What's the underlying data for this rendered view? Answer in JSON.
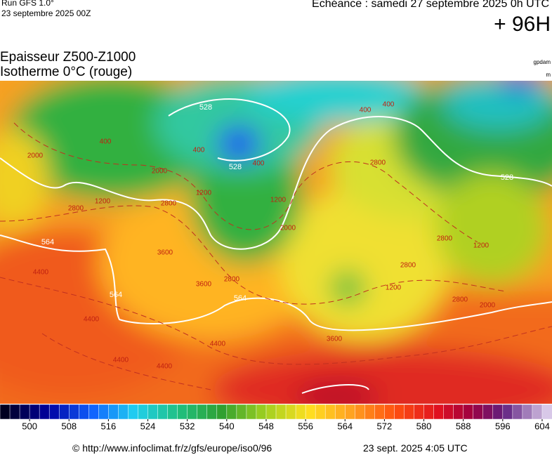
{
  "header": {
    "run": "Run GFS 1.0°",
    "run_date": "23 septembre 2025 00Z",
    "valid": "Echéance : samedi 27 septembre 2025 0h UTC",
    "lead": "+ 96H",
    "title1": "Epaisseur Z500-Z1000",
    "title2": "Isotherme 0°C (rouge)",
    "unit1": "gpdam",
    "unit2": "m"
  },
  "map": {
    "thickness_labels": [
      "528",
      "528",
      "528",
      "564",
      "564",
      "564"
    ],
    "isotherm_labels": [
      "400",
      "2000",
      "2000",
      "1200",
      "400",
      "400",
      "1200",
      "2800",
      "2800",
      "3600",
      "3600",
      "2800",
      "2000",
      "400",
      "400",
      "2800",
      "2800",
      "2800",
      "1200",
      "2000",
      "2800",
      "4400",
      "4400",
      "4400",
      "4400",
      "4400",
      "3600",
      "1200",
      "1200"
    ]
  },
  "colorbar": {
    "lim": [
      494,
      606
    ],
    "ticks": [
      500,
      508,
      516,
      524,
      532,
      540,
      548,
      556,
      564,
      572,
      580,
      588,
      596,
      604
    ]
  },
  "footer": {
    "source": "© http://www.infoclimat.fr/z/gfs/europe/iso0/96",
    "generated": "23 sept. 2025  4:05 UTC"
  }
}
